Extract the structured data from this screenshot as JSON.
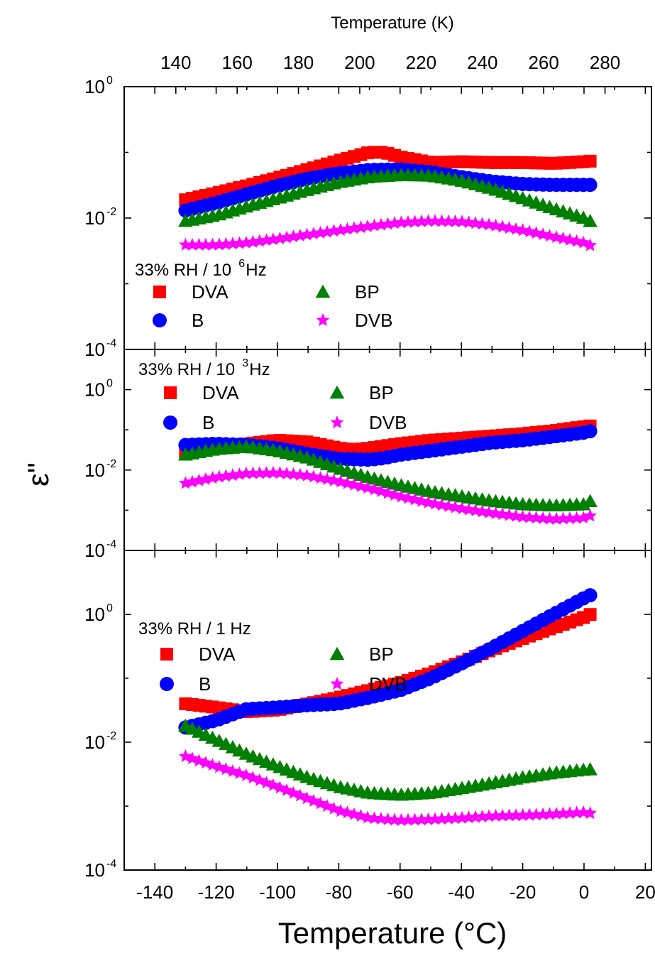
{
  "figure": {
    "ylabel": "ε\"",
    "top_axis": {
      "label": "Temperature (K)",
      "ticks": [
        "140",
        "160",
        "180",
        "200",
        "220",
        "240",
        "260",
        "280"
      ],
      "tick_values": [
        140,
        160,
        180,
        200,
        220,
        240,
        260,
        280
      ]
    },
    "bottom_axis": {
      "label": "Temperature (°C)",
      "ticks": [
        "-140",
        "-120",
        "-100",
        "-80",
        "-60",
        "-40",
        "-20",
        "0",
        "20"
      ],
      "tick_values": [
        -140,
        -120,
        -100,
        -80,
        -60,
        -40,
        -20,
        0,
        20
      ]
    },
    "panels": [
      {
        "title_base": "33% RH / 10",
        "title_exp": "6",
        "title_unit": " Hz",
        "y_ticks": [
          {
            "base": "10",
            "exp": "0"
          },
          {
            "base": "10",
            "exp": "-2"
          },
          {
            "base": "10",
            "exp": "-4"
          }
        ]
      },
      {
        "title_base": "33% RH / 10",
        "title_exp": "3",
        "title_unit": " Hz",
        "y_ticks": [
          {
            "base": "10",
            "exp": "0"
          },
          {
            "base": "10",
            "exp": "-2"
          },
          {
            "base": "10",
            "exp": "-4"
          }
        ]
      },
      {
        "title_base": "33% RH / 1 Hz",
        "title_exp": "",
        "title_unit": "",
        "y_ticks": [
          {
            "base": "10",
            "exp": "0"
          },
          {
            "base": "10",
            "exp": "-2"
          },
          {
            "base": "10",
            "exp": "-4"
          }
        ]
      }
    ],
    "legend": [
      "DVA",
      "B",
      "BP",
      "DVB"
    ]
  },
  "chart_data": [
    {
      "type": "scatter",
      "title": "33% RH / 10^6 Hz",
      "xlabel": "Temperature (°C)",
      "x2label": "Temperature (K)",
      "ylabel": "ε\"",
      "yscale": "log",
      "ylim": [
        0.0001,
        1
      ],
      "xlim": [
        -150,
        22
      ],
      "legend_position": "bottom-left",
      "series": [
        {
          "name": "DVA",
          "marker": "square",
          "color": "#ff0000",
          "x": [
            -130,
            -120,
            -110,
            -100,
            -90,
            -80,
            -70,
            -65,
            -60,
            -50,
            -40,
            -30,
            -20,
            -10,
            0,
            4
          ],
          "y": [
            0.019,
            0.024,
            0.031,
            0.041,
            0.055,
            0.075,
            0.1,
            0.1,
            0.085,
            0.07,
            0.072,
            0.07,
            0.07,
            0.068,
            0.072,
            0.075
          ]
        },
        {
          "name": "B",
          "marker": "circle",
          "color": "#0000ff",
          "x": [
            -130,
            -120,
            -110,
            -100,
            -90,
            -80,
            -70,
            -60,
            -50,
            -40,
            -30,
            -20,
            -10,
            0,
            4
          ],
          "y": [
            0.013,
            0.017,
            0.023,
            0.031,
            0.04,
            0.048,
            0.054,
            0.055,
            0.05,
            0.042,
            0.036,
            0.033,
            0.032,
            0.032,
            0.032
          ]
        },
        {
          "name": "BP",
          "marker": "triangle",
          "color": "#008000",
          "x": [
            -130,
            -120,
            -110,
            -100,
            -90,
            -80,
            -70,
            -60,
            -50,
            -40,
            -30,
            -20,
            -10,
            0,
            4
          ],
          "y": [
            0.009,
            0.011,
            0.015,
            0.02,
            0.027,
            0.035,
            0.042,
            0.045,
            0.044,
            0.037,
            0.028,
            0.02,
            0.014,
            0.01,
            0.008
          ]
        },
        {
          "name": "DVB",
          "marker": "star",
          "color": "#ff00ff",
          "x": [
            -130,
            -120,
            -110,
            -100,
            -90,
            -80,
            -70,
            -60,
            -50,
            -40,
            -30,
            -20,
            -10,
            0,
            4
          ],
          "y": [
            0.0039,
            0.0039,
            0.0042,
            0.0048,
            0.0056,
            0.0065,
            0.0075,
            0.0085,
            0.009,
            0.0088,
            0.0078,
            0.0065,
            0.0052,
            0.0042,
            0.0035
          ]
        }
      ]
    },
    {
      "type": "scatter",
      "title": "33% RH / 10^3 Hz",
      "xlabel": "Temperature (°C)",
      "ylabel": "ε\"",
      "yscale": "log",
      "ylim": [
        0.0001,
        10
      ],
      "xlim": [
        -150,
        22
      ],
      "legend_position": "top-left",
      "series": [
        {
          "name": "DVA",
          "marker": "square",
          "color": "#ff0000",
          "x": [
            -130,
            -120,
            -110,
            -100,
            -90,
            -80,
            -75,
            -70,
            -60,
            -50,
            -40,
            -30,
            -20,
            -10,
            0,
            4
          ],
          "y": [
            0.025,
            0.035,
            0.045,
            0.055,
            0.05,
            0.035,
            0.032,
            0.035,
            0.045,
            0.055,
            0.062,
            0.07,
            0.08,
            0.095,
            0.12,
            0.13
          ]
        },
        {
          "name": "B",
          "marker": "circle",
          "color": "#0000ff",
          "x": [
            -130,
            -120,
            -110,
            -100,
            -90,
            -80,
            -70,
            -65,
            -60,
            -50,
            -40,
            -30,
            -20,
            -10,
            0,
            4
          ],
          "y": [
            0.042,
            0.045,
            0.042,
            0.035,
            0.025,
            0.019,
            0.018,
            0.02,
            0.024,
            0.03,
            0.038,
            0.048,
            0.055,
            0.068,
            0.085,
            0.1
          ]
        },
        {
          "name": "BP",
          "marker": "triangle",
          "color": "#008000",
          "x": [
            -130,
            -120,
            -110,
            -100,
            -90,
            -80,
            -70,
            -60,
            -50,
            -40,
            -30,
            -20,
            -10,
            0,
            4
          ],
          "y": [
            0.024,
            0.033,
            0.038,
            0.03,
            0.02,
            0.011,
            0.0065,
            0.0042,
            0.0029,
            0.0022,
            0.0017,
            0.0014,
            0.0013,
            0.0014,
            0.002
          ]
        },
        {
          "name": "DVB",
          "marker": "star",
          "color": "#ff00ff",
          "x": [
            -130,
            -120,
            -110,
            -100,
            -90,
            -80,
            -70,
            -60,
            -50,
            -40,
            -30,
            -20,
            -10,
            0,
            4
          ],
          "y": [
            0.0047,
            0.0066,
            0.0082,
            0.0085,
            0.0072,
            0.0052,
            0.0035,
            0.0022,
            0.0015,
            0.0011,
            0.00085,
            0.00068,
            0.0006,
            0.00065,
            0.0008
          ]
        }
      ]
    },
    {
      "type": "scatter",
      "title": "33% RH / 1 Hz",
      "xlabel": "Temperature (°C)",
      "ylabel": "ε\"",
      "yscale": "log",
      "ylim": [
        0.0001,
        10
      ],
      "xlim": [
        -150,
        22
      ],
      "legend_position": "top-left",
      "series": [
        {
          "name": "DVA",
          "marker": "square",
          "color": "#ff0000",
          "x": [
            -130,
            -120,
            -110,
            -100,
            -90,
            -80,
            -70,
            -60,
            -50,
            -40,
            -30,
            -20,
            -10,
            0,
            4
          ],
          "y": [
            0.04,
            0.035,
            0.03,
            0.032,
            0.04,
            0.05,
            0.065,
            0.085,
            0.12,
            0.18,
            0.28,
            0.42,
            0.62,
            0.9,
            1.1
          ]
        },
        {
          "name": "B",
          "marker": "circle",
          "color": "#0000ff",
          "x": [
            -130,
            -120,
            -110,
            -100,
            -90,
            -80,
            -70,
            -60,
            -50,
            -40,
            -30,
            -20,
            -10,
            0,
            4
          ],
          "y": [
            0.017,
            0.022,
            0.033,
            0.035,
            0.038,
            0.04,
            0.05,
            0.065,
            0.1,
            0.17,
            0.3,
            0.55,
            1.0,
            1.8,
            2.2
          ]
        },
        {
          "name": "BP",
          "marker": "triangle",
          "color": "#008000",
          "x": [
            -130,
            -120,
            -110,
            -100,
            -90,
            -80,
            -70,
            -60,
            -50,
            -40,
            -30,
            -20,
            -10,
            0,
            4
          ],
          "y": [
            0.018,
            0.011,
            0.0065,
            0.0042,
            0.0028,
            0.002,
            0.0016,
            0.0015,
            0.0016,
            0.0019,
            0.0023,
            0.0028,
            0.0033,
            0.0037,
            0.0038
          ]
        },
        {
          "name": "DVB",
          "marker": "star",
          "color": "#ff00ff",
          "x": [
            -130,
            -120,
            -110,
            -100,
            -90,
            -80,
            -70,
            -60,
            -50,
            -40,
            -30,
            -20,
            -10,
            0,
            4
          ],
          "y": [
            0.006,
            0.0042,
            0.003,
            0.002,
            0.0013,
            0.00085,
            0.00065,
            0.0006,
            0.00062,
            0.00065,
            0.0007,
            0.00072,
            0.00075,
            0.0008,
            0.00075
          ]
        }
      ]
    }
  ]
}
